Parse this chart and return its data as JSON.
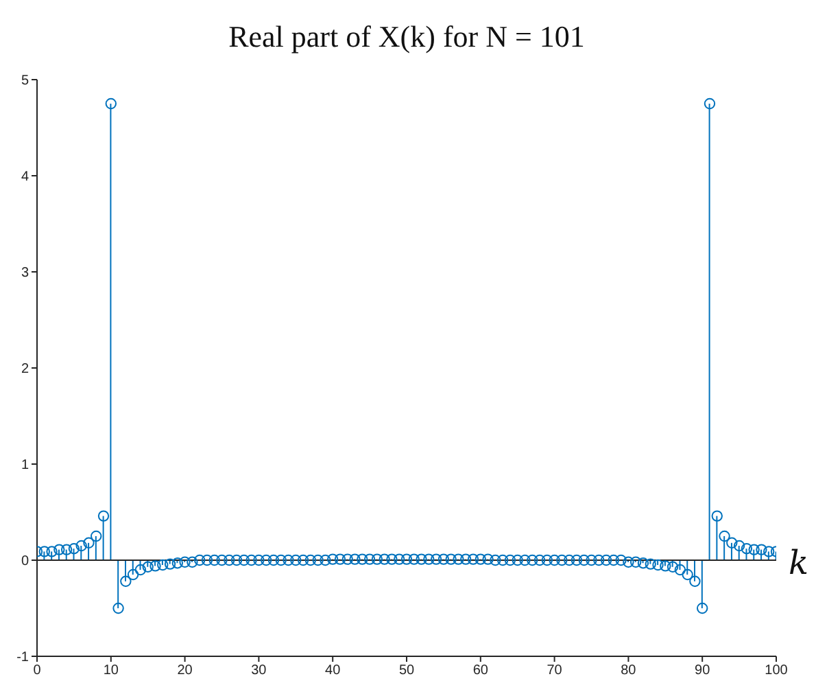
{
  "chart_data": {
    "type": "lollipop",
    "title": "Real part of X(k) for N = 101",
    "xlabel": "k",
    "x": [
      0,
      1,
      2,
      3,
      4,
      5,
      6,
      7,
      8,
      9,
      10,
      11,
      12,
      13,
      14,
      15,
      16,
      17,
      18,
      19,
      20,
      21,
      22,
      23,
      24,
      25,
      26,
      27,
      28,
      29,
      30,
      31,
      32,
      33,
      34,
      35,
      36,
      37,
      38,
      39,
      40,
      41,
      42,
      43,
      44,
      45,
      46,
      47,
      48,
      49,
      50,
      51,
      52,
      53,
      54,
      55,
      56,
      57,
      58,
      59,
      60,
      61,
      62,
      63,
      64,
      65,
      66,
      67,
      68,
      69,
      70,
      71,
      72,
      73,
      74,
      75,
      76,
      77,
      78,
      79,
      80,
      81,
      82,
      83,
      84,
      85,
      86,
      87,
      88,
      89,
      90,
      91,
      92,
      93,
      94,
      95,
      96,
      97,
      98,
      99,
      100
    ],
    "values": [
      0.09,
      0.09,
      0.09,
      0.11,
      0.11,
      0.12,
      0.15,
      0.18,
      0.25,
      0.46,
      4.75,
      -0.5,
      -0.22,
      -0.15,
      -0.1,
      -0.07,
      -0.06,
      -0.05,
      -0.04,
      -0.03,
      -0.02,
      -0.02,
      0,
      0,
      0,
      0,
      0,
      0,
      0,
      0,
      0,
      0,
      0,
      0,
      0,
      0,
      0,
      0,
      0,
      0,
      0.01,
      0.01,
      0.01,
      0.01,
      0.01,
      0.01,
      0.01,
      0.01,
      0.01,
      0.01,
      0.01,
      0.01,
      0.01,
      0.01,
      0.01,
      0.01,
      0.01,
      0.01,
      0.01,
      0.01,
      0.01,
      0.01,
      0,
      0,
      0,
      0,
      0,
      0,
      0,
      0,
      0,
      0,
      0,
      0,
      0,
      0,
      0,
      0,
      0,
      0,
      -0.02,
      -0.02,
      -0.03,
      -0.04,
      -0.05,
      -0.06,
      -0.07,
      -0.1,
      -0.15,
      -0.22,
      -0.5,
      4.75,
      0.46,
      0.25,
      0.18,
      0.15,
      0.12,
      0.11,
      0.11,
      0.09,
      0.09
    ],
    "color": "#0072bd",
    "marker": "circle",
    "xlim": [
      0,
      100
    ],
    "xticks": [
      0,
      10,
      20,
      30,
      40,
      50,
      60,
      70,
      80,
      90,
      100
    ],
    "ylim": [
      -1,
      5
    ],
    "yticks": [
      -1,
      0,
      1,
      2,
      3,
      4,
      5
    ]
  }
}
